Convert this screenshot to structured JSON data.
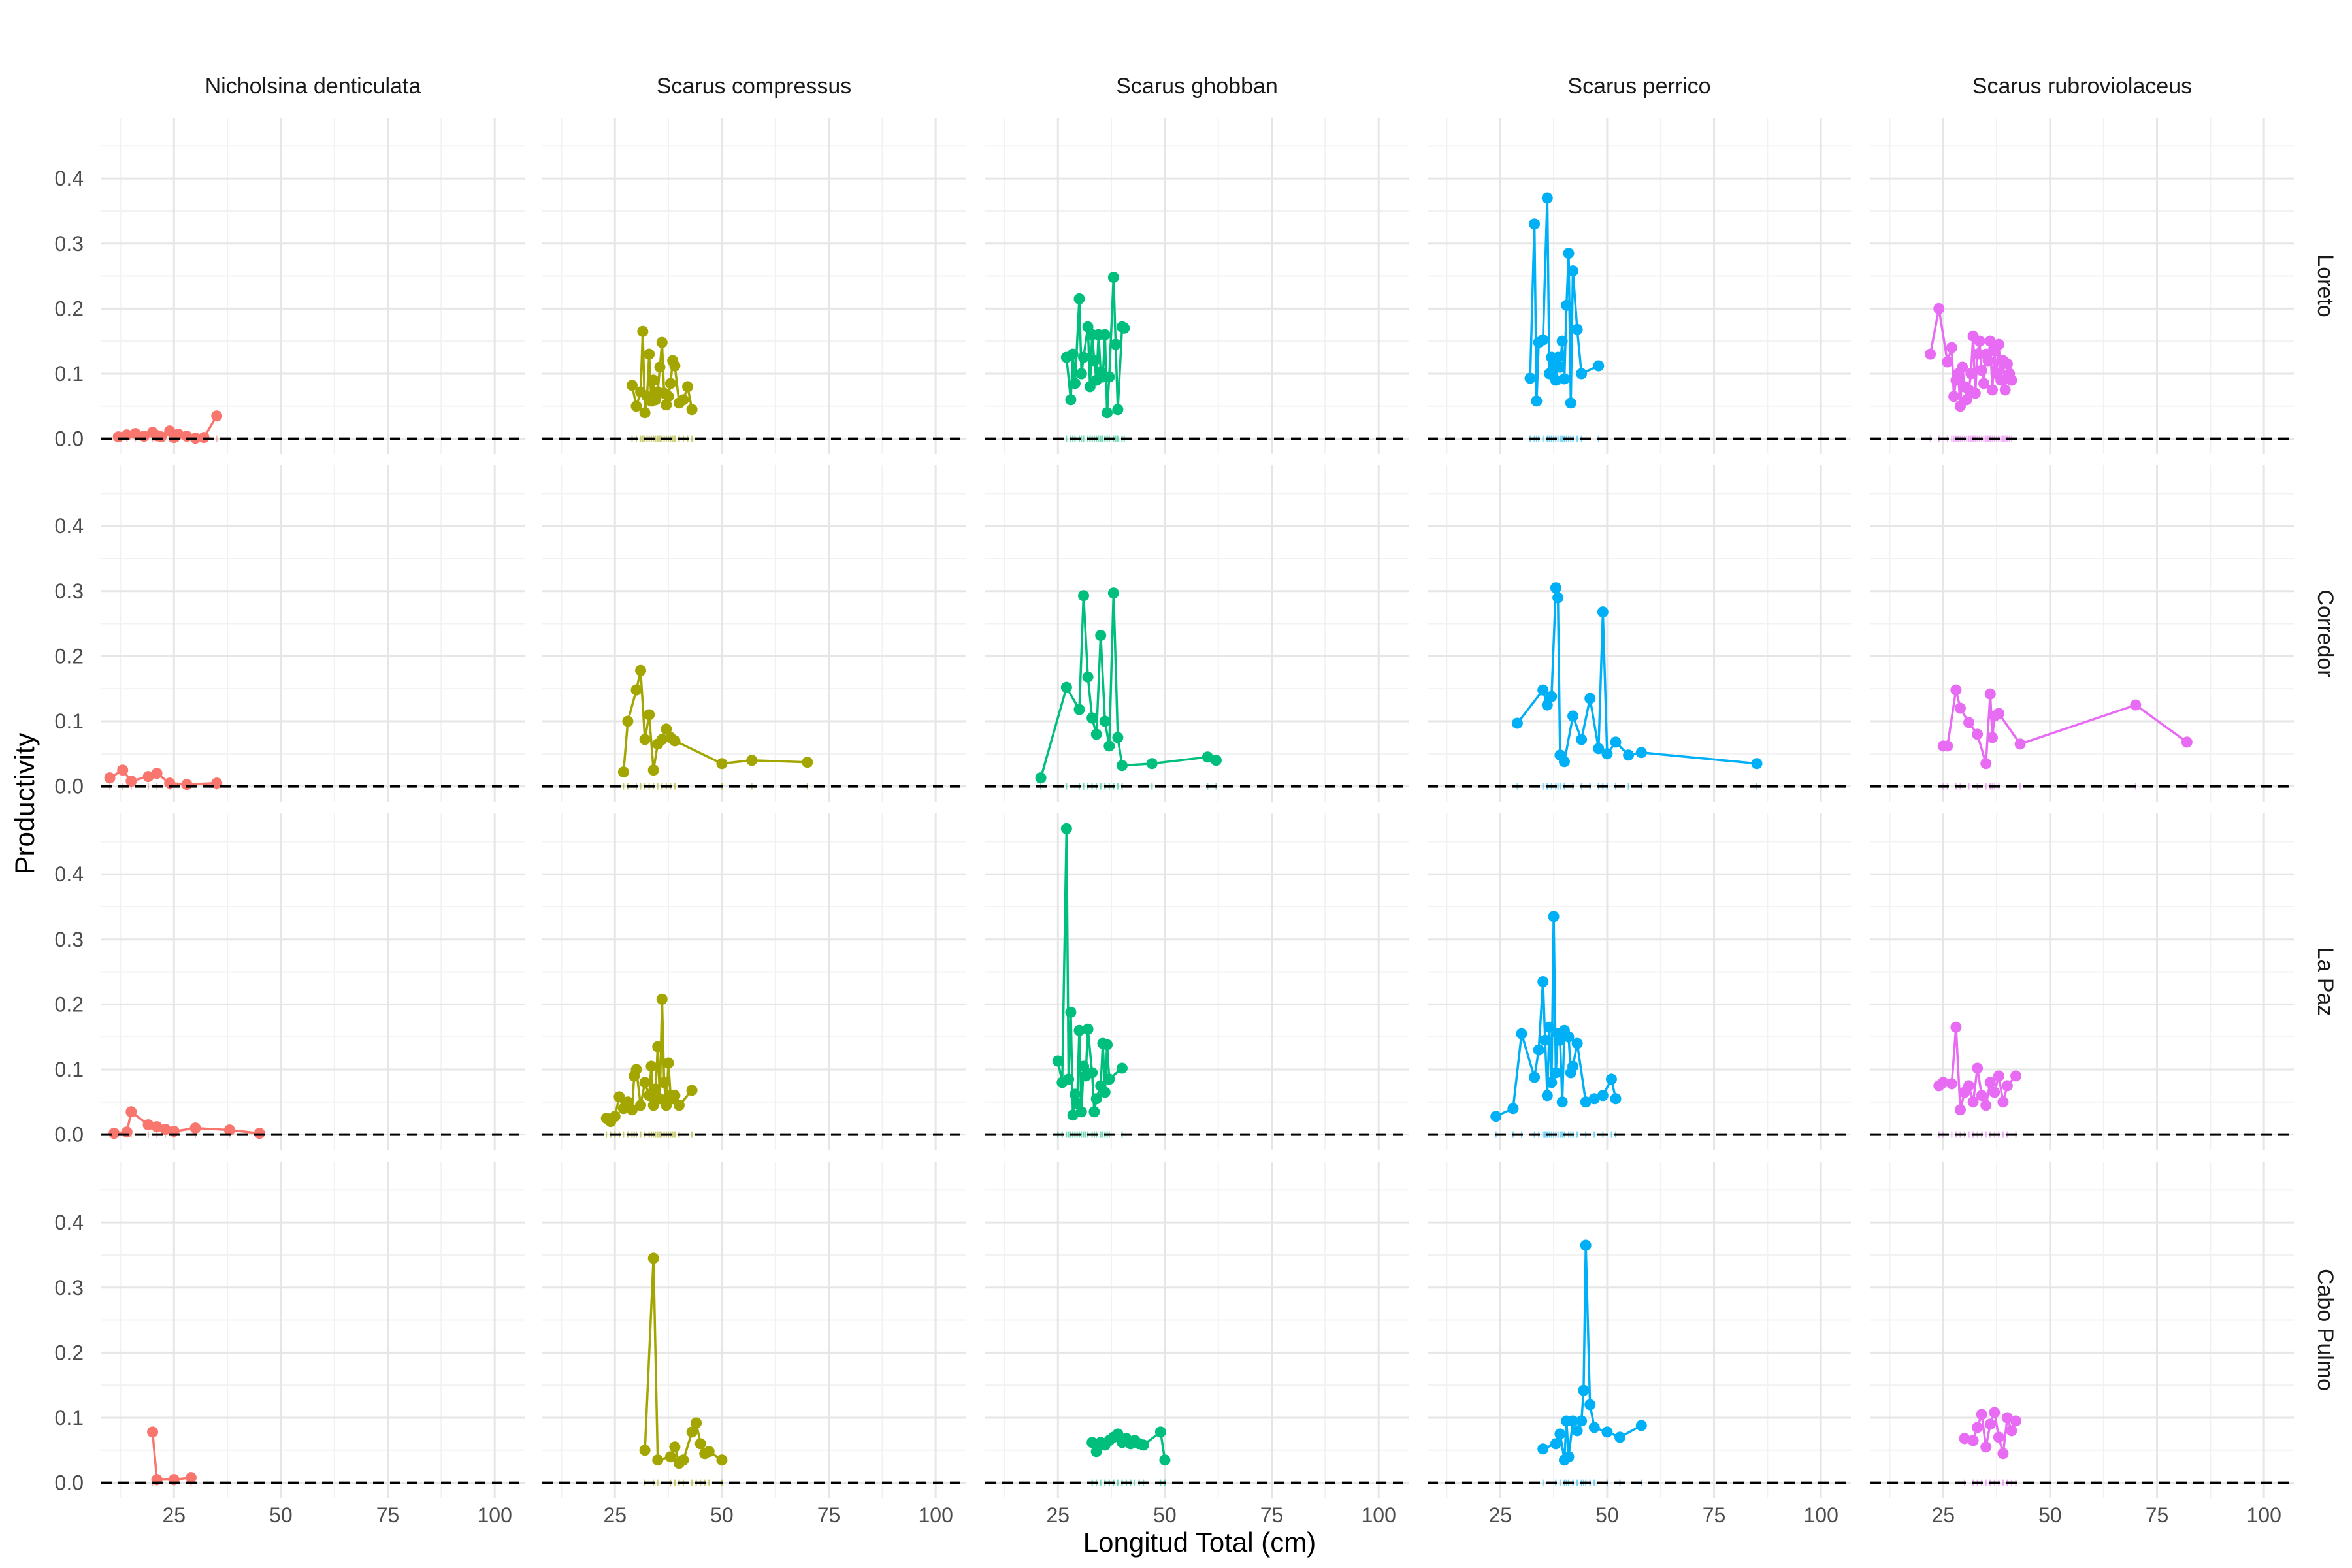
{
  "chart_data": {
    "type": "line",
    "title": "",
    "xlabel": "Longitud Total (cm)",
    "ylabel": "Productivity",
    "xlim": [
      8,
      107
    ],
    "ylim": [
      -0.0235,
      0.4935
    ],
    "x_ticks": [
      25,
      50,
      75,
      100
    ],
    "y_ticks": [
      0.0,
      0.1,
      0.2,
      0.3,
      0.4
    ],
    "y_tick_labels": [
      "0.0",
      "0.1",
      "0.2",
      "0.3",
      "0.4"
    ],
    "reference_line": {
      "y": 0,
      "style": "dashed",
      "color": "#000000"
    },
    "grid": true,
    "legend": "none",
    "species": [
      {
        "name": "Nicholsina denticulata",
        "color": "#F8766D"
      },
      {
        "name": "Scarus compressus",
        "color": "#A3A500"
      },
      {
        "name": "Scarus ghobban",
        "color": "#00BF7D"
      },
      {
        "name": "Scarus perrico",
        "color": "#00B0F6"
      },
      {
        "name": "Scarus rubroviolaceus",
        "color": "#E76BF3"
      }
    ],
    "sites": [
      "Loreto",
      "Corredor",
      "La Paz",
      "Cabo Pulmo"
    ],
    "panels": [
      [
        {
          "x": [
            12,
            14,
            16,
            18,
            20,
            21,
            22,
            24,
            25,
            26,
            28,
            30,
            32,
            35
          ],
          "y": [
            0.003,
            0.006,
            0.008,
            0.004,
            0.01,
            0.005,
            0.003,
            0.012,
            0.002,
            0.007,
            0.004,
            0.001,
            0.002,
            0.035
          ]
        },
        {
          "x": [
            29,
            30,
            31,
            31.5,
            32,
            32.5,
            33,
            33.5,
            34,
            34.5,
            35,
            35.5,
            36,
            36.5,
            37,
            37.5,
            38,
            38.5,
            39,
            40,
            41,
            42,
            43
          ],
          "y": [
            0.082,
            0.05,
            0.072,
            0.165,
            0.04,
            0.065,
            0.13,
            0.058,
            0.09,
            0.06,
            0.072,
            0.11,
            0.148,
            0.07,
            0.052,
            0.065,
            0.085,
            0.12,
            0.112,
            0.055,
            0.06,
            0.08,
            0.045
          ]
        },
        {
          "x": [
            27,
            28,
            28.5,
            29,
            30,
            30.5,
            31,
            32,
            32.5,
            33,
            33.5,
            34,
            34.5,
            35,
            35.5,
            36,
            36.5,
            37,
            38,
            38.5,
            39,
            40,
            40.5
          ],
          "y": [
            0.125,
            0.06,
            0.13,
            0.085,
            0.215,
            0.1,
            0.125,
            0.172,
            0.08,
            0.16,
            0.12,
            0.09,
            0.16,
            0.102,
            0.095,
            0.16,
            0.04,
            0.095,
            0.248,
            0.145,
            0.045,
            0.172,
            0.17
          ]
        },
        {
          "x": [
            32,
            33,
            33.5,
            34,
            35,
            36,
            36.5,
            37,
            37.5,
            38,
            38.5,
            39,
            39.5,
            40,
            40.5,
            41,
            41.5,
            42,
            43,
            44,
            48
          ],
          "y": [
            0.093,
            0.33,
            0.058,
            0.148,
            0.152,
            0.37,
            0.1,
            0.125,
            0.11,
            0.09,
            0.125,
            0.11,
            0.15,
            0.092,
            0.205,
            0.285,
            0.055,
            0.258,
            0.168,
            0.1,
            0.112
          ]
        },
        {
          "x": [
            22,
            24,
            26,
            27,
            27.5,
            28,
            28.5,
            29,
            29.5,
            30,
            30.5,
            31,
            31.5,
            32,
            32.5,
            33,
            33.5,
            34,
            34.5,
            35,
            35.5,
            36,
            36.5,
            37,
            37.5,
            38,
            38.5,
            39,
            39.5,
            40,
            40.5,
            41
          ],
          "y": [
            0.13,
            0.2,
            0.118,
            0.14,
            0.065,
            0.09,
            0.1,
            0.05,
            0.11,
            0.08,
            0.06,
            0.075,
            0.1,
            0.158,
            0.07,
            0.13,
            0.15,
            0.105,
            0.085,
            0.13,
            0.12,
            0.15,
            0.075,
            0.135,
            0.1,
            0.145,
            0.09,
            0.12,
            0.075,
            0.115,
            0.1,
            0.09
          ]
        }
      ],
      [
        {
          "x": [
            10,
            13,
            15,
            19,
            21,
            24,
            28,
            35
          ],
          "y": [
            0.013,
            0.025,
            0.008,
            0.015,
            0.02,
            0.005,
            0.003,
            0.005
          ]
        },
        {
          "x": [
            27,
            28,
            30,
            31,
            32,
            33,
            34,
            35,
            36,
            37,
            38,
            39,
            50,
            57,
            70
          ],
          "y": [
            0.022,
            0.1,
            0.148,
            0.178,
            0.072,
            0.11,
            0.025,
            0.065,
            0.072,
            0.088,
            0.075,
            0.07,
            0.035,
            0.04,
            0.037
          ]
        },
        {
          "x": [
            21,
            27,
            30,
            31,
            32,
            33,
            34,
            35,
            36,
            37,
            38,
            39,
            40,
            47,
            60,
            62
          ],
          "y": [
            0.013,
            0.152,
            0.118,
            0.293,
            0.168,
            0.105,
            0.08,
            0.232,
            0.1,
            0.062,
            0.297,
            0.075,
            0.032,
            0.035,
            0.045,
            0.04
          ]
        },
        {
          "x": [
            29,
            35,
            36,
            37,
            38,
            38.5,
            39,
            40,
            42,
            44,
            46,
            48,
            49,
            50,
            52,
            55,
            58,
            85
          ],
          "y": [
            0.097,
            0.148,
            0.125,
            0.138,
            0.305,
            0.29,
            0.048,
            0.038,
            0.108,
            0.072,
            0.135,
            0.058,
            0.268,
            0.05,
            0.068,
            0.048,
            0.052,
            0.035
          ]
        },
        {
          "x": [
            25,
            26,
            28,
            29,
            31,
            33,
            35,
            36,
            36.5,
            37,
            38,
            43,
            70,
            82
          ],
          "y": [
            0.062,
            0.062,
            0.148,
            0.12,
            0.098,
            0.08,
            0.035,
            0.142,
            0.075,
            0.108,
            0.112,
            0.065,
            0.125,
            0.068
          ]
        }
      ],
      [
        {
          "x": [
            11,
            14,
            15,
            19,
            21,
            23,
            25,
            30,
            38,
            45
          ],
          "y": [
            0.002,
            0.004,
            0.035,
            0.015,
            0.012,
            0.008,
            0.005,
            0.01,
            0.007,
            0.002
          ]
        },
        {
          "x": [
            23,
            24,
            25,
            26,
            27,
            28,
            29,
            29.5,
            30,
            31,
            32,
            33,
            33.5,
            34,
            34.5,
            35,
            35.5,
            36,
            36.5,
            37,
            37.5,
            38,
            38.5,
            39,
            40,
            43
          ],
          "y": [
            0.025,
            0.02,
            0.028,
            0.058,
            0.04,
            0.05,
            0.038,
            0.09,
            0.1,
            0.045,
            0.08,
            0.06,
            0.105,
            0.045,
            0.07,
            0.135,
            0.055,
            0.208,
            0.08,
            0.045,
            0.11,
            0.06,
            0.055,
            0.06,
            0.045,
            0.068
          ]
        },
        {
          "x": [
            25,
            26,
            27,
            27.5,
            28,
            28.5,
            29,
            29.5,
            30,
            30.5,
            31,
            31.5,
            32,
            33,
            33.5,
            34,
            35,
            35.5,
            36,
            36.5,
            37,
            40
          ],
          "y": [
            0.113,
            0.08,
            0.47,
            0.085,
            0.188,
            0.03,
            0.062,
            0.048,
            0.16,
            0.035,
            0.105,
            0.09,
            0.162,
            0.095,
            0.035,
            0.055,
            0.075,
            0.14,
            0.065,
            0.138,
            0.085,
            0.102
          ]
        },
        {
          "x": [
            24,
            28,
            30,
            33,
            34,
            35,
            35.5,
            36,
            36.5,
            37,
            37.5,
            38,
            38.5,
            39,
            39.5,
            40,
            41,
            41.5,
            42,
            43,
            45,
            47,
            49,
            51,
            52
          ],
          "y": [
            0.028,
            0.04,
            0.155,
            0.088,
            0.13,
            0.235,
            0.145,
            0.06,
            0.165,
            0.08,
            0.335,
            0.095,
            0.155,
            0.145,
            0.05,
            0.16,
            0.15,
            0.095,
            0.105,
            0.14,
            0.05,
            0.055,
            0.06,
            0.085,
            0.055
          ]
        },
        {
          "x": [
            24,
            25,
            27,
            28,
            29,
            30,
            31,
            32,
            33,
            34,
            35,
            36,
            37,
            38,
            39,
            40,
            42
          ],
          "y": [
            0.075,
            0.08,
            0.078,
            0.165,
            0.038,
            0.065,
            0.075,
            0.05,
            0.102,
            0.06,
            0.045,
            0.08,
            0.065,
            0.09,
            0.05,
            0.075,
            0.09
          ]
        }
      ],
      [
        {
          "x": [
            20,
            21,
            25,
            29
          ],
          "y": [
            0.078,
            0.005,
            0.005,
            0.008
          ]
        },
        {
          "x": [
            32,
            34,
            35,
            38,
            39,
            40,
            41,
            43,
            44,
            45,
            46,
            47,
            50
          ],
          "y": [
            0.05,
            0.345,
            0.035,
            0.04,
            0.055,
            0.03,
            0.035,
            0.078,
            0.092,
            0.06,
            0.045,
            0.048,
            0.035
          ]
        },
        {
          "x": [
            33,
            34,
            35,
            36,
            37,
            38,
            39,
            40,
            41,
            42,
            43,
            44,
            45,
            49,
            50
          ],
          "y": [
            0.062,
            0.048,
            0.062,
            0.058,
            0.065,
            0.07,
            0.075,
            0.062,
            0.068,
            0.06,
            0.065,
            0.06,
            0.058,
            0.078,
            0.035
          ]
        },
        {
          "x": [
            35,
            38,
            39,
            40,
            40.5,
            41,
            42,
            43,
            44,
            44.5,
            45,
            46,
            47,
            50,
            53,
            58
          ],
          "y": [
            0.052,
            0.06,
            0.075,
            0.035,
            0.095,
            0.04,
            0.095,
            0.08,
            0.095,
            0.142,
            0.365,
            0.12,
            0.085,
            0.078,
            0.07,
            0.088
          ]
        },
        {
          "x": [
            30,
            32,
            33,
            34,
            35,
            36,
            37,
            38,
            39,
            40,
            41,
            42
          ],
          "y": [
            0.068,
            0.065,
            0.085,
            0.105,
            0.055,
            0.09,
            0.108,
            0.07,
            0.045,
            0.1,
            0.08,
            0.095
          ]
        }
      ]
    ]
  }
}
